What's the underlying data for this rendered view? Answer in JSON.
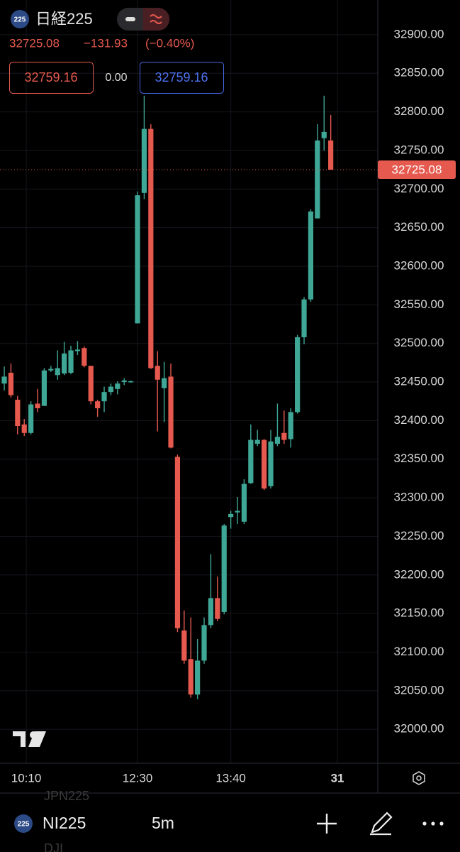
{
  "header": {
    "badge": "225",
    "symbol": "日経225",
    "price": "32725.08",
    "change": "−131.93",
    "change_pct": "(−0.40%)",
    "bid": "32759.16",
    "spread": "0.00",
    "ask": "32759.16"
  },
  "chart_data": {
    "type": "candlestick",
    "open": [
      32448,
      32462,
      32427,
      32395,
      32384,
      32422,
      32419,
      32465,
      32459,
      32461,
      32462,
      32490,
      32494,
      32471,
      32425,
      32425,
      32437,
      32441,
      32450,
      32450,
      32526,
      32695,
      32778,
      32471,
      32442,
      32457,
      32353,
      32128,
      32091,
      32045,
      32089,
      32135,
      32170,
      32152,
      32275,
      32281,
      32269,
      32319,
      32370,
      32375,
      32315,
      32370,
      32384,
      32376,
      32411,
      32508,
      32557,
      32662,
      32766,
      32763
    ],
    "high": [
      32470,
      32474,
      32432,
      32402,
      32425,
      32441,
      32468,
      32471,
      32491,
      32502,
      32497,
      32503,
      32496,
      32471,
      32427,
      32444,
      32448,
      32451,
      32455,
      32452,
      32697,
      32821,
      32784,
      32490,
      32476,
      32474,
      32356,
      32154,
      32145,
      32117,
      32145,
      32227,
      32198,
      32266,
      32283,
      32301,
      32324,
      32395,
      32388,
      32376,
      32388,
      32422,
      32413,
      32416,
      32511,
      32560,
      32674,
      32784,
      32821,
      32796
    ],
    "low": [
      32439,
      32430,
      32382,
      32380,
      32382,
      32411,
      32421,
      32463,
      32453,
      32459,
      32460,
      32485,
      32469,
      32421,
      32405,
      32411,
      32433,
      32434,
      32446,
      32449,
      32526,
      32687,
      32467,
      32386,
      32398,
      32364,
      32126,
      32085,
      32041,
      32039,
      32085,
      32131,
      32140,
      32149,
      32260,
      32266,
      32266,
      32318,
      32367,
      32310,
      32312,
      32367,
      32370,
      32365,
      32409,
      32499,
      32554,
      32662,
      32750,
      32725.08
    ],
    "close": [
      32457,
      32433,
      32393,
      32384,
      32421,
      32416,
      32465,
      32467,
      32468,
      32487,
      32491,
      32492,
      32471,
      32425,
      32416,
      32437,
      32444,
      32448,
      32452,
      32451,
      32692,
      32778,
      32468,
      32453,
      32455,
      32365,
      32131,
      32089,
      32045,
      32089,
      32135,
      32170,
      32143,
      32264,
      32279,
      32283,
      32318,
      32375,
      32375,
      32312,
      32373,
      32379,
      32375,
      32411,
      32508,
      32557,
      32671,
      32763,
      32774,
      32725.08
    ],
    "up_color": "#3fa796",
    "down_color": "#e5594f",
    "last_price": 32725.08,
    "ylim": [
      31956,
      32945
    ],
    "yticks": [
      {
        "value": 32000,
        "label": "32000.00"
      },
      {
        "value": 32050,
        "label": "32050.00"
      },
      {
        "value": 32100,
        "label": "32100.00"
      },
      {
        "value": 32150,
        "label": "32150.00"
      },
      {
        "value": 32200,
        "label": "32200.00"
      },
      {
        "value": 32250,
        "label": "32250.00"
      },
      {
        "value": 32300,
        "label": "32300.00"
      },
      {
        "value": 32350,
        "label": "32350.00"
      },
      {
        "value": 32400,
        "label": "32400.00"
      },
      {
        "value": 32450,
        "label": "32450.00"
      },
      {
        "value": 32500,
        "label": "32500.00"
      },
      {
        "value": 32550,
        "label": "32550.00"
      },
      {
        "value": 32600,
        "label": "32600.00"
      },
      {
        "value": 32650,
        "label": "32650.00"
      },
      {
        "value": 32700,
        "label": "32700.00"
      },
      {
        "value": 32750,
        "label": "32750.00"
      },
      {
        "value": 32800,
        "label": "32800.00"
      },
      {
        "value": 32850,
        "label": "32850.00"
      },
      {
        "value": 32900,
        "label": "32900.00"
      }
    ],
    "xlim": [
      -0.64,
      56.06
    ],
    "xticks": [
      {
        "value": 3.3,
        "label": "10:10"
      },
      {
        "value": 20,
        "label": "12:30"
      },
      {
        "value": 34,
        "label": "13:40"
      },
      {
        "value": 50,
        "label": "31"
      }
    ],
    "grid": true
  },
  "toolbar": {
    "prev_symbol": "JPN225",
    "badge": "225",
    "symbol": "NI225",
    "interval": "5m",
    "next_symbol": "DJI"
  }
}
